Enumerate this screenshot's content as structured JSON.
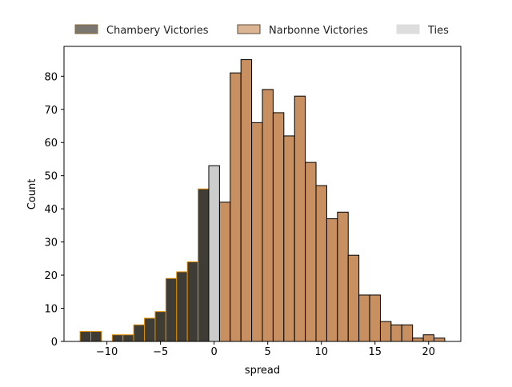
{
  "chart_data": {
    "type": "bar",
    "title": "",
    "xlabel": "spread",
    "ylabel": "Count",
    "xlim": [
      -14,
      23
    ],
    "ylim": [
      0,
      89
    ],
    "xticks": [
      -10,
      -5,
      0,
      5,
      10,
      15,
      20
    ],
    "xtick_labels": [
      "−10",
      "−5",
      "0",
      "5",
      "10",
      "15",
      "20"
    ],
    "yticks": [
      0,
      10,
      20,
      30,
      40,
      50,
      60,
      70,
      80
    ],
    "grid": false,
    "legend_position": "top-center (above plot)",
    "bin_width": 1,
    "series": [
      {
        "name": "Chambery Victories",
        "fill": "#3f3c35",
        "edge": "#e08c00",
        "bins": [
          {
            "x": -12,
            "count": 3
          },
          {
            "x": -11,
            "count": 3
          },
          {
            "x": -9,
            "count": 2
          },
          {
            "x": -8,
            "count": 2
          },
          {
            "x": -7,
            "count": 5
          },
          {
            "x": -6,
            "count": 7
          },
          {
            "x": -5,
            "count": 9
          },
          {
            "x": -4,
            "count": 19
          },
          {
            "x": -3,
            "count": 21
          },
          {
            "x": -2,
            "count": 24
          },
          {
            "x": -1,
            "count": 46
          }
        ]
      },
      {
        "name": "Narbonne Victories",
        "fill": "#c89060",
        "edge": "#000000",
        "bins": [
          {
            "x": 1,
            "count": 42
          },
          {
            "x": 2,
            "count": 81
          },
          {
            "x": 3,
            "count": 85
          },
          {
            "x": 4,
            "count": 66
          },
          {
            "x": 5,
            "count": 76
          },
          {
            "x": 6,
            "count": 69
          },
          {
            "x": 7,
            "count": 62
          },
          {
            "x": 8,
            "count": 74
          },
          {
            "x": 9,
            "count": 54
          },
          {
            "x": 10,
            "count": 47
          },
          {
            "x": 11,
            "count": 37
          },
          {
            "x": 12,
            "count": 39
          },
          {
            "x": 13,
            "count": 26
          },
          {
            "x": 14,
            "count": 14
          },
          {
            "x": 15,
            "count": 14
          },
          {
            "x": 16,
            "count": 6
          },
          {
            "x": 17,
            "count": 5
          },
          {
            "x": 18,
            "count": 5
          },
          {
            "x": 19,
            "count": 1
          },
          {
            "x": 20,
            "count": 2
          },
          {
            "x": 21,
            "count": 1
          }
        ]
      },
      {
        "name": "Ties",
        "fill": "#cccccc",
        "edge": "#000000",
        "bins": [
          {
            "x": 0,
            "count": 53
          }
        ]
      }
    ]
  },
  "legend": {
    "items": [
      {
        "label": "Chambery Victories",
        "fill": "#7a7670",
        "edge": "#8a6a3a"
      },
      {
        "label": "Narbonne Victories",
        "fill": "#dbb593",
        "edge": "#5a4a3a"
      },
      {
        "label": "Ties",
        "fill": "#dddddd",
        "edge": "#dddddd"
      }
    ]
  }
}
